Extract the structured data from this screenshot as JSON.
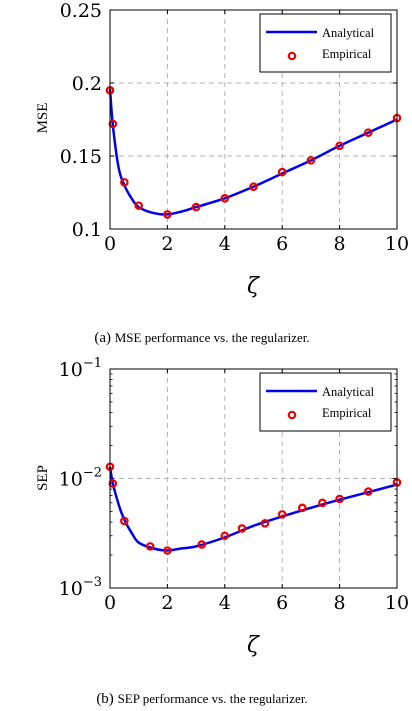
{
  "chart_data": [
    {
      "type": "line",
      "title": "",
      "xlabel": "ζ",
      "ylabel": "MSE",
      "xlim": [
        0,
        10
      ],
      "ylim": [
        0.1,
        0.25
      ],
      "yscale": "linear",
      "xticks": [
        "0",
        "2",
        "4",
        "6",
        "8",
        "10"
      ],
      "yticks": [
        "0.1",
        "0.15",
        "0.2",
        "0.25"
      ],
      "grid": true,
      "legend_position": "top-right",
      "caption_label": "(a)",
      "caption_text": "MSE performance vs. the regularizer.",
      "series": [
        {
          "name": "Analytical",
          "style": "line",
          "color": "#0000ee",
          "x": [
            0,
            0.1,
            0.3,
            0.5,
            0.75,
            1,
            1.5,
            2,
            2.5,
            3,
            4,
            5,
            6,
            7,
            8,
            9,
            10
          ],
          "y": [
            0.196,
            0.171,
            0.142,
            0.13,
            0.121,
            0.115,
            0.111,
            0.11,
            0.112,
            0.115,
            0.121,
            0.129,
            0.138,
            0.147,
            0.157,
            0.166,
            0.175
          ]
        },
        {
          "name": "Empirical",
          "style": "marker",
          "color": "#ee0000",
          "x": [
            0,
            0.1,
            0.5,
            1,
            2,
            3,
            4,
            5,
            6,
            7,
            8,
            9,
            10
          ],
          "y": [
            0.195,
            0.172,
            0.132,
            0.116,
            0.11,
            0.115,
            0.121,
            0.129,
            0.139,
            0.147,
            0.157,
            0.166,
            0.176
          ]
        }
      ]
    },
    {
      "type": "line",
      "title": "",
      "xlabel": "ζ",
      "ylabel": "SEP",
      "xlim": [
        0,
        10
      ],
      "ylim": [
        0.001,
        0.1
      ],
      "yscale": "log",
      "xticks": [
        "0",
        "2",
        "4",
        "6",
        "8",
        "10"
      ],
      "yticks": [
        "10^-3",
        "10^-2",
        "10^-1"
      ],
      "grid": true,
      "legend_position": "top-right",
      "caption_label": "(b)",
      "caption_text": "SEP performance vs. the regularizer.",
      "series": [
        {
          "name": "Analytical",
          "style": "line",
          "color": "#0000ee",
          "x": [
            0,
            0.1,
            0.3,
            0.5,
            0.75,
            1,
            1.5,
            2,
            2.5,
            3,
            4,
            5,
            6,
            7,
            8,
            9,
            10
          ],
          "y": [
            0.0128,
            0.009,
            0.0058,
            0.0042,
            0.0032,
            0.0026,
            0.0023,
            0.0022,
            0.0023,
            0.0024,
            0.0029,
            0.0037,
            0.0045,
            0.0054,
            0.0064,
            0.0075,
            0.0088
          ]
        },
        {
          "name": "Empirical",
          "style": "marker",
          "color": "#ee0000",
          "x": [
            0,
            0.1,
            0.5,
            1.4,
            2,
            3.2,
            4,
            4.6,
            5.4,
            6,
            6.7,
            7.4,
            8,
            9,
            10
          ],
          "y": [
            0.0128,
            0.009,
            0.0041,
            0.0024,
            0.0022,
            0.0025,
            0.003,
            0.0035,
            0.0039,
            0.0047,
            0.0054,
            0.006,
            0.0065,
            0.0076,
            0.0092
          ]
        }
      ]
    }
  ]
}
